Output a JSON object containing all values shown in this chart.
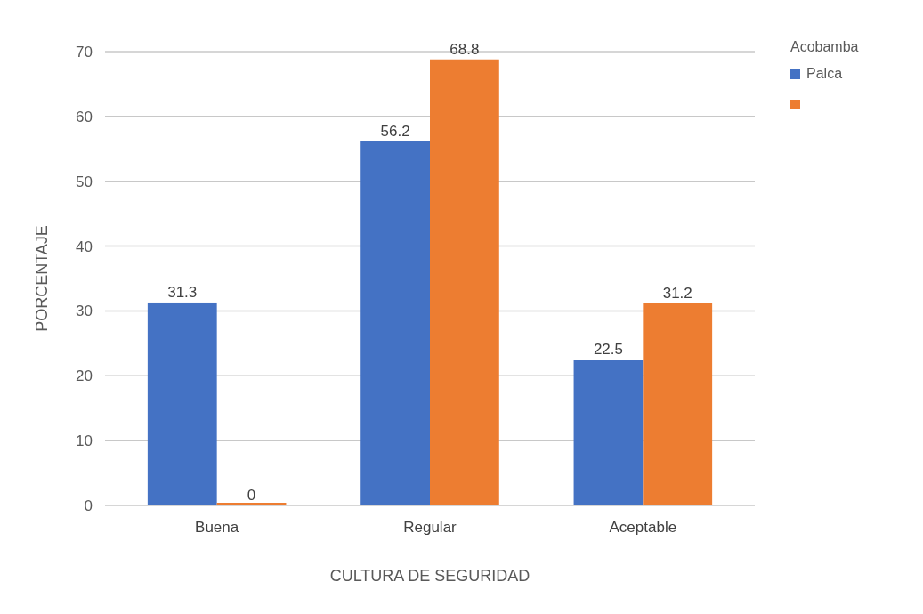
{
  "chart_data": {
    "type": "bar",
    "xlabel": "CULTURA DE SEGURIDAD",
    "ylabel": "PORCENTAJE",
    "legend_title": "Acobamba",
    "categories": [
      "Buena",
      "Regular",
      "Aceptable"
    ],
    "series": [
      {
        "name": "Palca",
        "color": "#4472c4",
        "values": [
          31.3,
          56.2,
          22.5
        ]
      },
      {
        "color": "#ed7d31",
        "values": [
          0,
          68.8,
          31.2
        ]
      }
    ],
    "ylim": [
      0,
      70
    ],
    "yticks": [
      0,
      10,
      20,
      30,
      40,
      50,
      60,
      70
    ],
    "grid": "y",
    "legend": "top right",
    "data_labels": true
  }
}
